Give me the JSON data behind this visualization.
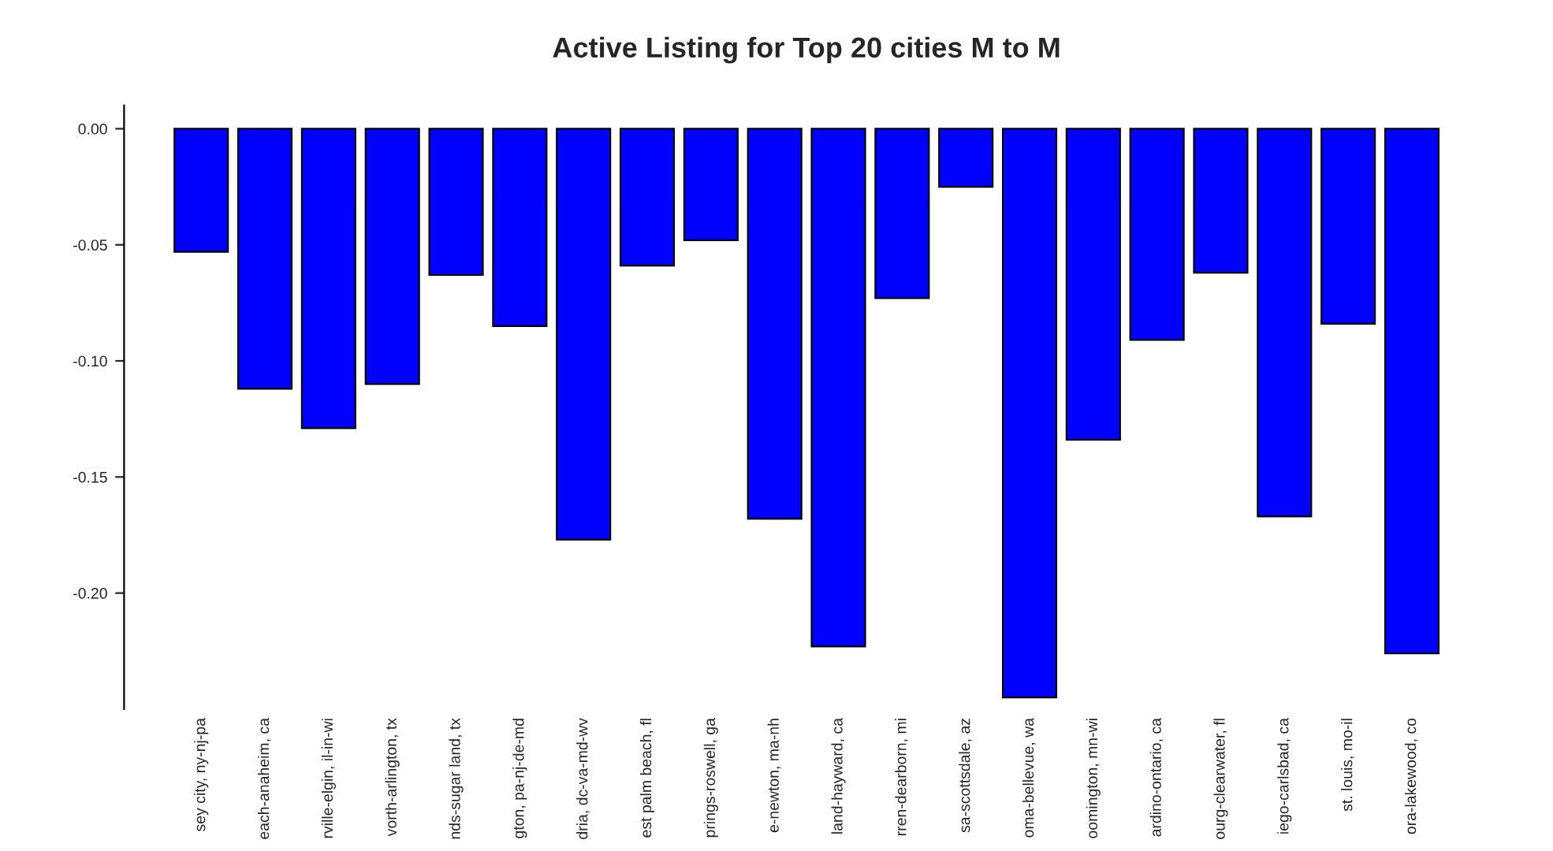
{
  "chart_data": {
    "type": "bar",
    "title": "Active Listing for Top 20 cities M to M",
    "categories": [
      "sey city, ny-nj-pa",
      "each-anaheim, ca",
      "rville-elgin, il-in-wi",
      "vorth-arlington, tx",
      "nds-sugar land, tx",
      "gton, pa-nj-de-md",
      "dria, dc-va-md-wv",
      "est palm beach, fl",
      "prings-roswell, ga",
      "e-newton, ma-nh",
      "land-hayward, ca",
      "rren-dearborn, mi",
      "sa-scottsdale, az",
      "oma-bellevue, wa",
      "oomington, mn-wi",
      "ardino-ontario, ca",
      "ourg-clearwater, fl",
      "iego-carlsbad, ca",
      "st. louis, mo-il",
      "ora-lakewood, co"
    ],
    "values": [
      -0.053,
      -0.112,
      -0.129,
      -0.11,
      -0.063,
      -0.085,
      -0.177,
      -0.059,
      -0.048,
      -0.168,
      -0.223,
      -0.073,
      -0.025,
      -0.245,
      -0.134,
      -0.091,
      -0.062,
      -0.167,
      -0.084,
      -0.226
    ],
    "color": "#0000ff",
    "ylim": [
      -0.25,
      0.01
    ],
    "yticks": [
      {
        "value": 0,
        "label": "0.00"
      },
      {
        "value": -0.05,
        "label": "-0.05"
      },
      {
        "value": -0.1,
        "label": "-0.10"
      },
      {
        "value": -0.15,
        "label": "-0.15"
      },
      {
        "value": -0.2,
        "label": "-0.20"
      }
    ],
    "grid": false
  }
}
